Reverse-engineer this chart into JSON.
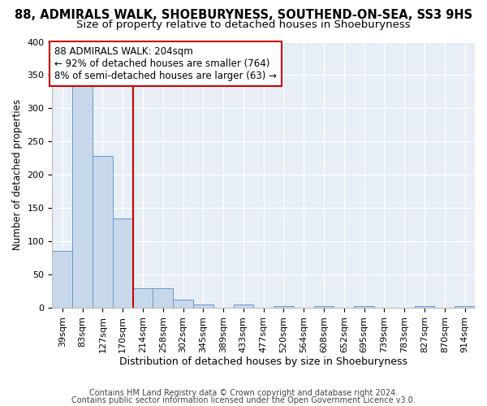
{
  "title1": "88, ADMIRALS WALK, SHOEBURYNESS, SOUTHEND-ON-SEA, SS3 9HS",
  "title2": "Size of property relative to detached houses in Shoeburyness",
  "xlabel": "Distribution of detached houses by size in Shoeburyness",
  "ylabel": "Number of detached properties",
  "bins": [
    "39sqm",
    "83sqm",
    "127sqm",
    "170sqm",
    "214sqm",
    "258sqm",
    "302sqm",
    "345sqm",
    "389sqm",
    "433sqm",
    "477sqm",
    "520sqm",
    "564sqm",
    "608sqm",
    "652sqm",
    "695sqm",
    "739sqm",
    "783sqm",
    "827sqm",
    "870sqm",
    "914sqm"
  ],
  "values": [
    85,
    335,
    229,
    135,
    29,
    29,
    12,
    5,
    0,
    5,
    0,
    3,
    0,
    3,
    0,
    3,
    0,
    0,
    3,
    0,
    3
  ],
  "bar_color": "#c8d8eb",
  "bar_edge_color": "#6699cc",
  "vline_color": "#cc0000",
  "vline_pos": 4,
  "annotation_line1": "88 ADMIRALS WALK: 204sqm",
  "annotation_line2": "← 92% of detached houses are smaller (764)",
  "annotation_line3": "8% of semi-detached houses are larger (63) →",
  "annotation_box_color": "#cc0000",
  "ylim": [
    0,
    400
  ],
  "yticks": [
    0,
    50,
    100,
    150,
    200,
    250,
    300,
    350,
    400
  ],
  "footer1": "Contains HM Land Registry data © Crown copyright and database right 2024.",
  "footer2": "Contains public sector information licensed under the Open Government Licence v3.0.",
  "bg_color": "#ffffff",
  "plot_bg_color": "#e8eef5",
  "title1_fontsize": 10.5,
  "title2_fontsize": 9.5,
  "xlabel_fontsize": 9,
  "ylabel_fontsize": 8.5,
  "tick_fontsize": 8,
  "annotation_fontsize": 8.5,
  "footer_fontsize": 7
}
